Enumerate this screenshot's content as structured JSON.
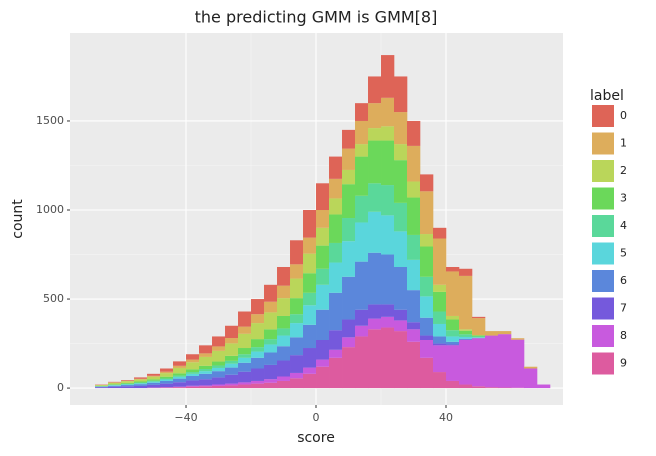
{
  "chart_data": {
    "type": "histogram",
    "title": "the predicting GMM is GMM[8]",
    "x_label": "score",
    "y_label": "count",
    "legend_title": "label",
    "bins": [
      -68,
      -64,
      -60,
      -56,
      -52,
      -48,
      -44,
      -40,
      -36,
      -32,
      -28,
      -24,
      -20,
      -16,
      -12,
      -8,
      -4,
      0,
      4,
      8,
      12,
      16,
      20,
      24,
      28,
      32,
      36,
      40,
      44,
      48,
      52,
      56,
      60,
      64,
      68,
      72
    ],
    "xlim": [
      -75.7,
      76
    ],
    "xticks": [
      {
        "value": -40,
        "label": "−40"
      },
      0,
      40
    ],
    "ylim": [
      -95,
      1994
    ],
    "yticks": [
      0,
      500,
      1000,
      1500
    ],
    "grid": true,
    "stacked": true,
    "legend": "right",
    "series": [
      {
        "name": "0",
        "color": "#de6457",
        "values": [
          2,
          3,
          4,
          8,
          11,
          18,
          25,
          30,
          45,
          56,
          69,
          85,
          85,
          95,
          105,
          135,
          155,
          150,
          125,
          105,
          100,
          150,
          240,
          200,
          140,
          95,
          60,
          25,
          40,
          7,
          0,
          0,
          0,
          0,
          0
        ]
      },
      {
        "name": "1",
        "color": "#ddad5c",
        "values": [
          1,
          2,
          2,
          3,
          5,
          8,
          12,
          15,
          20,
          25,
          30,
          40,
          50,
          60,
          70,
          80,
          90,
          100,
          110,
          120,
          130,
          140,
          160,
          180,
          200,
          240,
          260,
          250,
          300,
          95,
          25,
          17,
          8,
          10,
          0
        ]
      },
      {
        "name": "2",
        "color": "#bad65a",
        "values": [
          5,
          8,
          10,
          12,
          15,
          20,
          30,
          40,
          50,
          60,
          70,
          80,
          90,
          95,
          100,
          110,
          110,
          100,
          90,
          80,
          70,
          70,
          80,
          90,
          90,
          70,
          40,
          20,
          8,
          3,
          0,
          0,
          0,
          0,
          0
        ]
      },
      {
        "name": "3",
        "color": "#6bd85a",
        "values": [
          2,
          4,
          5,
          6,
          8,
          10,
          12,
          15,
          18,
          22,
          28,
          35,
          45,
          55,
          70,
          90,
          110,
          130,
          160,
          190,
          220,
          240,
          250,
          240,
          210,
          170,
          110,
          60,
          20,
          5,
          0,
          0,
          0,
          0,
          0
        ]
      },
      {
        "name": "4",
        "color": "#5ad89a",
        "values": [
          0,
          2,
          3,
          4,
          5,
          6,
          8,
          10,
          12,
          14,
          16,
          20,
          25,
          30,
          40,
          50,
          70,
          90,
          110,
          130,
          150,
          160,
          170,
          160,
          140,
          110,
          70,
          35,
          15,
          5,
          0,
          0,
          0,
          0,
          0
        ]
      },
      {
        "name": "5",
        "color": "#5ad6dc",
        "values": [
          2,
          3,
          4,
          5,
          6,
          8,
          10,
          12,
          15,
          18,
          22,
          28,
          35,
          45,
          60,
          80,
          110,
          140,
          170,
          200,
          220,
          230,
          220,
          200,
          170,
          120,
          70,
          30,
          10,
          3,
          0,
          0,
          0,
          0,
          0
        ]
      },
      {
        "name": "6",
        "color": "#5b87db",
        "values": [
          3,
          5,
          7,
          10,
          12,
          15,
          20,
          25,
          30,
          35,
          40,
          50,
          60,
          70,
          80,
          100,
          130,
          170,
          210,
          240,
          270,
          290,
          280,
          240,
          180,
          100,
          40,
          15,
          5,
          2,
          0,
          0,
          0,
          0,
          0
        ]
      },
      {
        "name": "7",
        "color": "#7559dc",
        "values": [
          5,
          8,
          10,
          12,
          15,
          20,
          25,
          30,
          35,
          40,
          50,
          60,
          70,
          80,
          90,
          100,
          110,
          110,
          110,
          100,
          90,
          80,
          70,
          60,
          40,
          25,
          10,
          5,
          2,
          0,
          0,
          0,
          0,
          0,
          0
        ]
      },
      {
        "name": "8",
        "color": "#c85ade",
        "values": [
          0,
          0,
          0,
          0,
          1,
          2,
          3,
          5,
          5,
          8,
          10,
          12,
          15,
          20,
          25,
          30,
          35,
          40,
          45,
          55,
          60,
          60,
          60,
          60,
          70,
          100,
          150,
          200,
          250,
          270,
          290,
          300,
          270,
          110,
          20
        ]
      },
      {
        "name": "9",
        "color": "#dd5b9f",
        "values": [
          0,
          0,
          0,
          0,
          2,
          3,
          5,
          8,
          10,
          12,
          15,
          20,
          25,
          30,
          40,
          55,
          80,
          120,
          170,
          230,
          290,
          330,
          340,
          320,
          260,
          170,
          90,
          40,
          20,
          10,
          5,
          3,
          2,
          0,
          0
        ]
      }
    ]
  }
}
